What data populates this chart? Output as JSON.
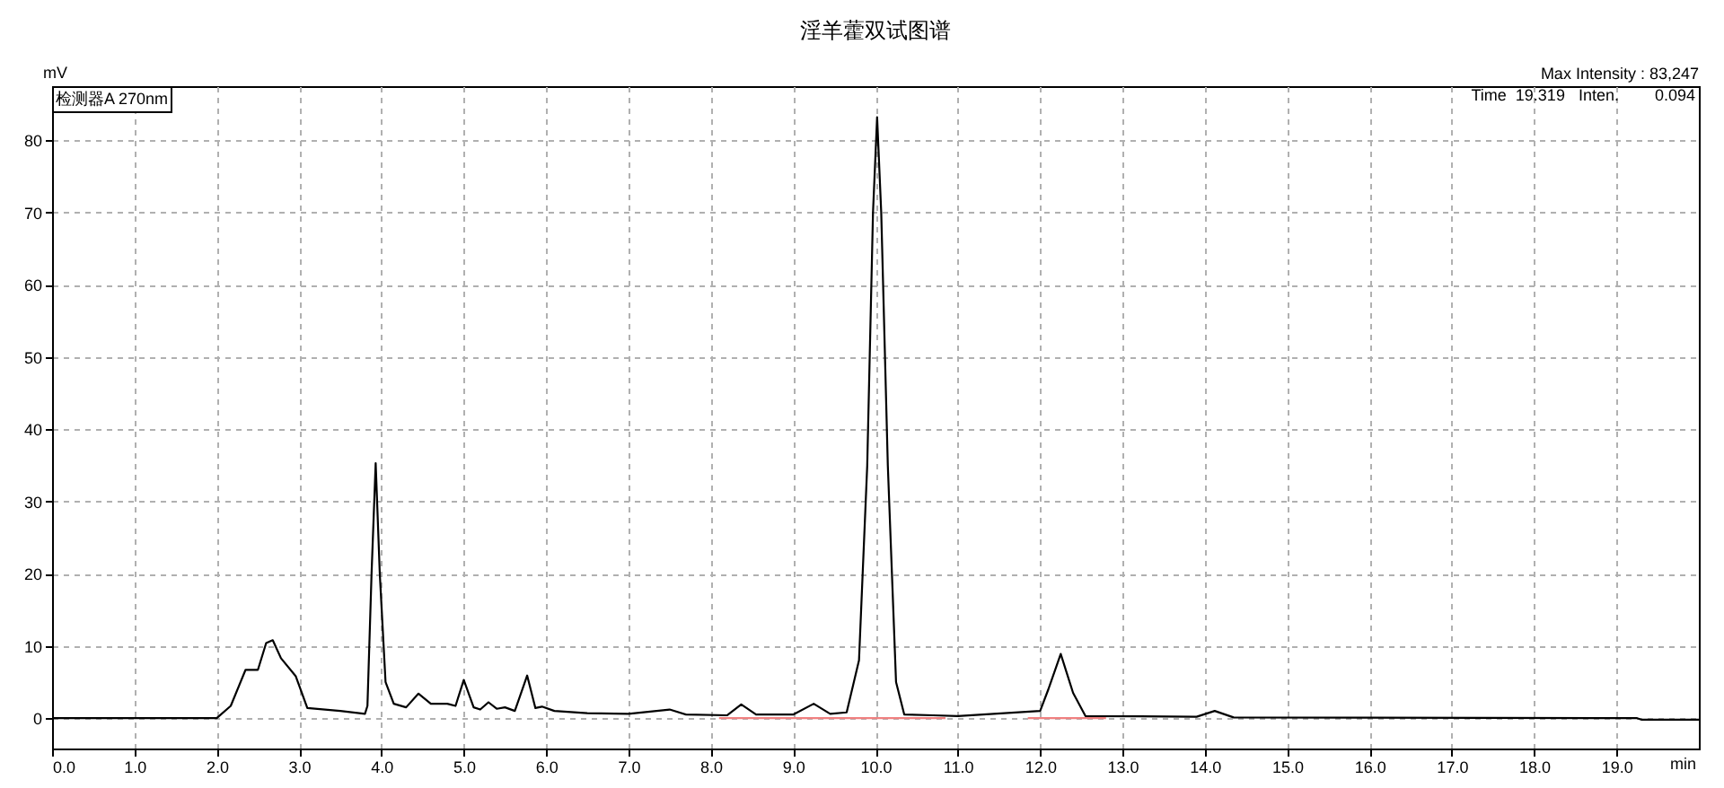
{
  "chart_data": {
    "type": "line",
    "title": "淫羊藿双试图谱",
    "xlabel": "min",
    "ylabel": "mV",
    "annotations": [
      "检测器A 270nm",
      "Max Intensity : 83,247",
      "Time  19.319   Inten.        0.094"
    ],
    "xlim": [
      0,
      20
    ],
    "ylim": [
      -4.2,
      87.5
    ],
    "xticks": [
      {
        "value": 0,
        "label": "0.0"
      },
      {
        "value": 1,
        "label": "1.0"
      },
      {
        "value": 2,
        "label": "2.0"
      },
      {
        "value": 3,
        "label": "3.0"
      },
      {
        "value": 4,
        "label": "4.0"
      },
      {
        "value": 5,
        "label": "5.0"
      },
      {
        "value": 6,
        "label": "6.0"
      },
      {
        "value": 7,
        "label": "7.0"
      },
      {
        "value": 8,
        "label": "8.0"
      },
      {
        "value": 9,
        "label": "9.0"
      },
      {
        "value": 10,
        "label": "10.0"
      },
      {
        "value": 11,
        "label": "11.0"
      },
      {
        "value": 12,
        "label": "12.0"
      },
      {
        "value": 13,
        "label": "13.0"
      },
      {
        "value": 14,
        "label": "14.0"
      },
      {
        "value": 15,
        "label": "15.0"
      },
      {
        "value": 16,
        "label": "16.0"
      },
      {
        "value": 17,
        "label": "17.0"
      },
      {
        "value": 18,
        "label": "18.0"
      },
      {
        "value": 19,
        "label": "19.0"
      }
    ],
    "yticks": [
      0,
      10,
      20,
      30,
      40,
      50,
      60,
      70,
      80
    ],
    "grid": true,
    "series": [
      {
        "color": "#000000",
        "x": [
          0,
          2.0,
          2.17,
          2.35,
          2.5,
          2.6,
          2.68,
          2.78,
          2.96,
          3.1,
          3.5,
          3.8,
          3.83,
          3.88,
          3.93,
          3.98,
          4.05,
          4.15,
          4.3,
          4.45,
          4.6,
          4.8,
          4.9,
          5.0,
          5.12,
          5.2,
          5.3,
          5.4,
          5.5,
          5.62,
          5.77,
          5.87,
          5.95,
          6.1,
          6.5,
          7.0,
          7.5,
          7.7,
          8.2,
          8.37,
          8.55,
          9.0,
          9.25,
          9.45,
          9.65,
          9.8,
          9.9,
          9.97,
          10.02,
          10.07,
          10.15,
          10.25,
          10.35,
          10.7,
          11.0,
          12.0,
          12.1,
          12.25,
          12.4,
          12.55,
          13.9,
          14.12,
          14.35,
          19.25,
          19.3,
          20.0
        ],
        "values": [
          0,
          0,
          1.7,
          6.7,
          6.7,
          10.4,
          10.8,
          8.3,
          5.8,
          1.4,
          1.0,
          0.6,
          1.7,
          20,
          35.3,
          20,
          5,
          2,
          1.5,
          3.4,
          2,
          2.0,
          1.7,
          5.3,
          1.5,
          1.2,
          2.2,
          1.3,
          1.5,
          1.0,
          5.9,
          1.4,
          1.6,
          1.0,
          0.7,
          0.6,
          1.2,
          0.5,
          0.4,
          1.9,
          0.5,
          0.5,
          2.0,
          0.6,
          0.8,
          8,
          35,
          70,
          83.2,
          70,
          35,
          5,
          0.5,
          0.4,
          0.3,
          1.0,
          4,
          8.9,
          3.5,
          0.3,
          0.2,
          1.0,
          0.1,
          0,
          -0.2,
          -0.2
        ]
      },
      {
        "color": "#f08080",
        "x": [
          8.1,
          10.85,
          11.4,
          11.85,
          12.8
        ],
        "values": [
          0,
          0,
          null,
          0,
          0
        ]
      }
    ]
  }
}
